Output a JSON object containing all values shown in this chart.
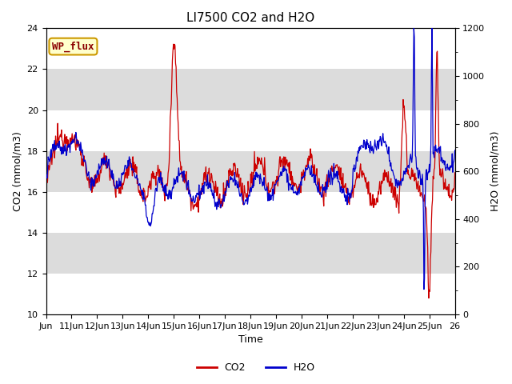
{
  "title": "LI7500 CO2 and H2O",
  "xlabel": "Time",
  "ylabel_left": "CO2 (mmol/m3)",
  "ylabel_right": "H2O (mmol/m3)",
  "ylim_left": [
    10,
    24
  ],
  "ylim_right": [
    0,
    1200
  ],
  "yticks_left": [
    10,
    12,
    14,
    16,
    18,
    20,
    22,
    24
  ],
  "yticks_right": [
    0,
    200,
    400,
    600,
    800,
    1000,
    1200
  ],
  "xtick_labels": [
    "Jun",
    "11Jun",
    "12Jun",
    "13Jun",
    "14Jun",
    "15Jun",
    "16Jun",
    "17Jun",
    "18Jun",
    "19Jun",
    "20Jun",
    "21Jun",
    "22Jun",
    "23Jun",
    "24Jun",
    "25Jun",
    "26"
  ],
  "co2_color": "#cc0000",
  "h2o_color": "#0000cc",
  "annotation_text": "WP_flux",
  "annotation_bg": "#ffffcc",
  "annotation_border": "#cc9900",
  "legend_co2": "CO2",
  "legend_h2o": "H2O",
  "title_fontsize": 11,
  "axis_fontsize": 9,
  "tick_fontsize": 8,
  "legend_fontsize": 9,
  "band_colors": [
    "#ffffff",
    "#dcdcdc"
  ],
  "band_edges": [
    10,
    12,
    14,
    16,
    18,
    20,
    22,
    24
  ]
}
